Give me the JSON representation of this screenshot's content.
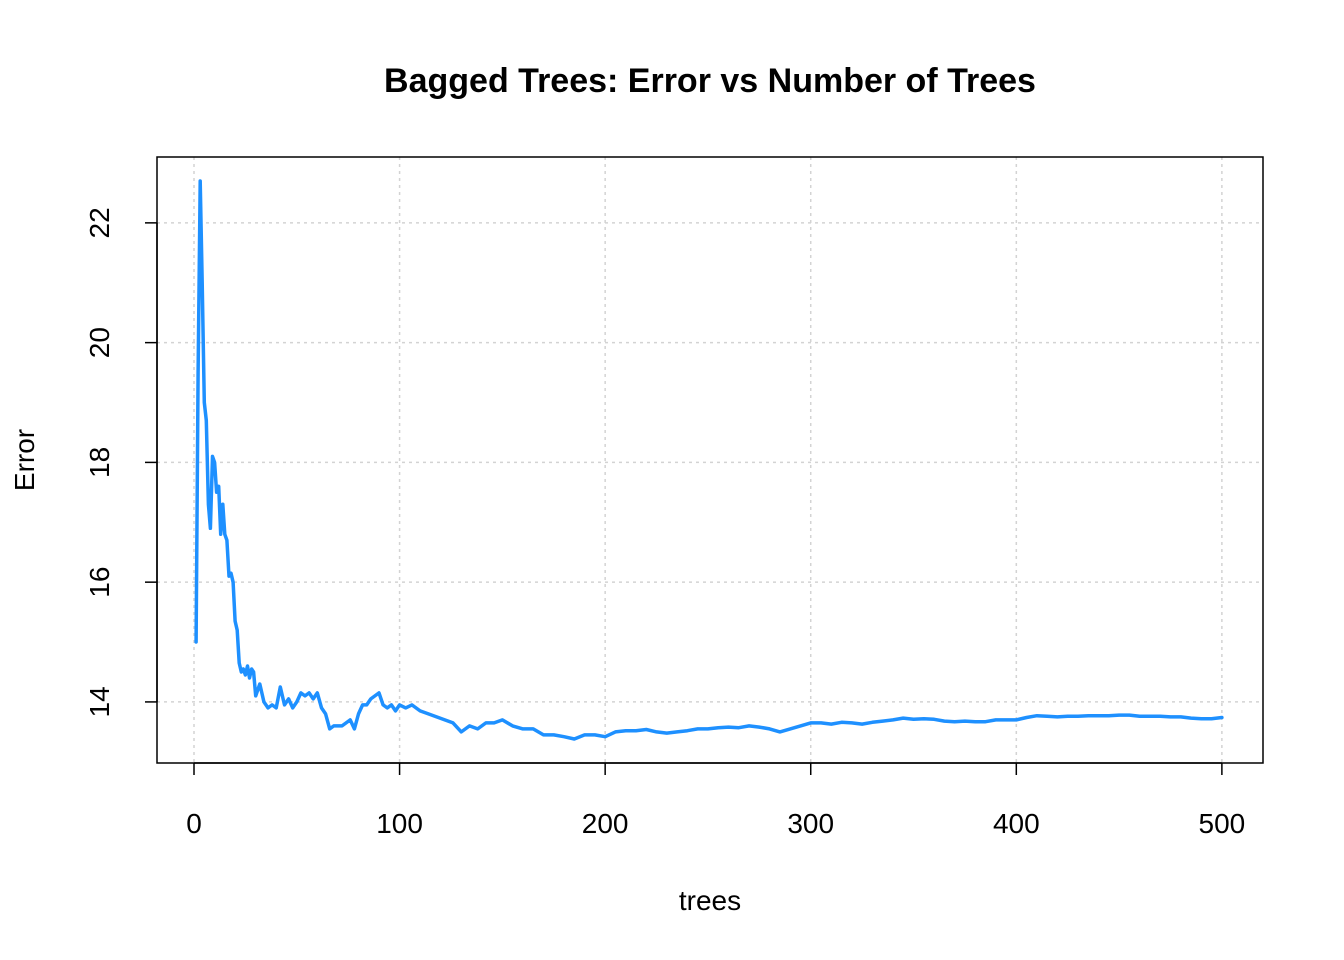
{
  "chart_data": {
    "type": "line",
    "title": "Bagged Trees: Error vs Number of Trees",
    "xlabel": "trees",
    "ylabel": "Error",
    "xlim": [
      -18,
      520
    ],
    "ylim": [
      12.98,
      23.1
    ],
    "x_ticks": [
      {
        "value": 0,
        "label": "0"
      },
      {
        "value": 100,
        "label": "100"
      },
      {
        "value": 200,
        "label": "200"
      },
      {
        "value": 300,
        "label": "300"
      },
      {
        "value": 400,
        "label": "400"
      },
      {
        "value": 500,
        "label": "500"
      }
    ],
    "y_ticks": [
      {
        "value": 14,
        "label": "14"
      },
      {
        "value": 16,
        "label": "16"
      },
      {
        "value": 18,
        "label": "18"
      },
      {
        "value": 20,
        "label": "20"
      },
      {
        "value": 22,
        "label": "22"
      }
    ],
    "grid": true,
    "grid_style": "dotted",
    "series": [
      {
        "color": "#1E90FF",
        "x": [
          1,
          2,
          3,
          4,
          5,
          6,
          7,
          8,
          9,
          10,
          11,
          12,
          13,
          14,
          15,
          16,
          17,
          18,
          19,
          20,
          21,
          22,
          23,
          24,
          25,
          26,
          27,
          28,
          29,
          30,
          32,
          34,
          36,
          38,
          40,
          42,
          44,
          46,
          48,
          50,
          52,
          54,
          56,
          58,
          60,
          62,
          64,
          66,
          68,
          70,
          72,
          74,
          76,
          78,
          80,
          82,
          84,
          86,
          88,
          90,
          92,
          94,
          96,
          98,
          100,
          103,
          106,
          110,
          114,
          118,
          122,
          126,
          130,
          134,
          138,
          142,
          146,
          150,
          155,
          160,
          165,
          170,
          175,
          180,
          185,
          190,
          195,
          200,
          205,
          210,
          215,
          220,
          225,
          230,
          235,
          240,
          245,
          250,
          255,
          260,
          265,
          270,
          275,
          280,
          285,
          290,
          295,
          300,
          305,
          310,
          315,
          320,
          325,
          330,
          335,
          340,
          345,
          350,
          355,
          360,
          365,
          370,
          375,
          380,
          385,
          390,
          395,
          400,
          405,
          410,
          415,
          420,
          425,
          430,
          435,
          440,
          445,
          450,
          455,
          460,
          465,
          470,
          475,
          480,
          485,
          490,
          495,
          500
        ],
        "y": [
          15.0,
          19.5,
          22.7,
          21.0,
          19.0,
          18.7,
          17.3,
          16.9,
          18.1,
          18.0,
          17.5,
          17.6,
          16.8,
          17.3,
          16.8,
          16.7,
          16.1,
          16.15,
          16.0,
          15.35,
          15.2,
          14.65,
          14.5,
          14.55,
          14.45,
          14.6,
          14.4,
          14.55,
          14.5,
          14.1,
          14.3,
          14.0,
          13.9,
          13.95,
          13.9,
          14.25,
          13.95,
          14.05,
          13.9,
          14.0,
          14.15,
          14.1,
          14.15,
          14.05,
          14.15,
          13.9,
          13.8,
          13.55,
          13.6,
          13.6,
          13.6,
          13.65,
          13.7,
          13.55,
          13.8,
          13.95,
          13.95,
          14.05,
          14.1,
          14.15,
          13.95,
          13.9,
          13.95,
          13.85,
          13.95,
          13.9,
          13.95,
          13.85,
          13.8,
          13.75,
          13.7,
          13.65,
          13.5,
          13.6,
          13.55,
          13.65,
          13.65,
          13.7,
          13.6,
          13.55,
          13.55,
          13.45,
          13.45,
          13.42,
          13.38,
          13.45,
          13.45,
          13.42,
          13.5,
          13.52,
          13.52,
          13.54,
          13.5,
          13.48,
          13.5,
          13.52,
          13.55,
          13.55,
          13.57,
          13.58,
          13.57,
          13.6,
          13.58,
          13.55,
          13.5,
          13.55,
          13.6,
          13.65,
          13.65,
          13.63,
          13.66,
          13.65,
          13.63,
          13.66,
          13.68,
          13.7,
          13.73,
          13.71,
          13.72,
          13.71,
          13.68,
          13.67,
          13.68,
          13.67,
          13.67,
          13.7,
          13.7,
          13.7,
          13.74,
          13.77,
          13.76,
          13.75,
          13.76,
          13.76,
          13.77,
          13.77,
          13.77,
          13.78,
          13.78,
          13.76,
          13.76,
          13.76,
          13.75,
          13.75,
          13.73,
          13.72,
          13.72,
          13.74
        ]
      }
    ]
  }
}
